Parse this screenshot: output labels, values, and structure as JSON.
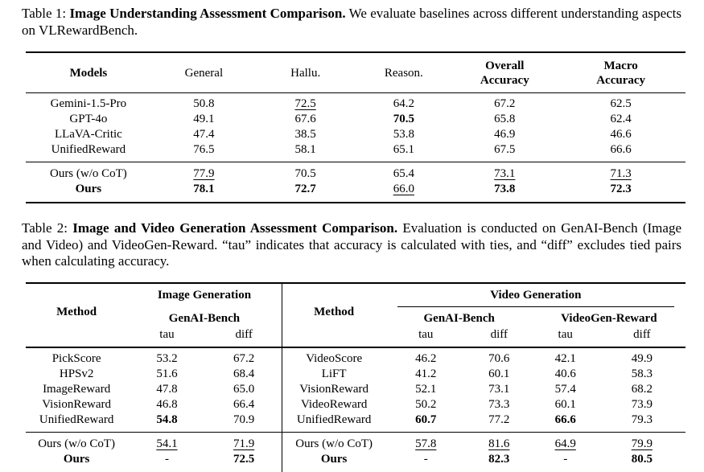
{
  "table1": {
    "caption": {
      "label": "Table 1: ",
      "title": "Image Understanding Assessment Comparison.",
      "rest": " We evaluate baselines across different understanding aspects on VLRewardBench."
    },
    "columns": [
      {
        "label": "Models",
        "bold": true
      },
      {
        "label": "General",
        "bold": false
      },
      {
        "label": "Hallu.",
        "bold": false
      },
      {
        "label": "Reason.",
        "bold": false
      },
      {
        "label": "Overall Accuracy",
        "bold": true,
        "narrow": true
      },
      {
        "label": "Macro Accuracy",
        "bold": true,
        "narrow": true
      }
    ],
    "rows": [
      [
        "Gemini-1.5-Pro",
        "50.8",
        {
          "t": "72.5",
          "s": "u"
        },
        "64.2",
        "67.2",
        "62.5"
      ],
      [
        "GPT-4o",
        "49.1",
        "67.6",
        {
          "t": "70.5",
          "s": "b"
        },
        "65.8",
        "62.4"
      ],
      [
        "LLaVA-Critic",
        "47.4",
        "38.5",
        "53.8",
        "46.9",
        "46.6"
      ],
      [
        "UnifiedReward",
        "76.5",
        "58.1",
        "65.1",
        "67.5",
        "66.6"
      ]
    ],
    "ours_rows": [
      [
        "Ours (w/o CoT)",
        {
          "t": "77.9",
          "s": "u"
        },
        "70.5",
        "65.4",
        {
          "t": "73.1",
          "s": "u"
        },
        {
          "t": "71.3",
          "s": "u"
        }
      ],
      [
        {
          "t": "Ours",
          "s": "b"
        },
        {
          "t": "78.1",
          "s": "b"
        },
        {
          "t": "72.7",
          "s": "b"
        },
        {
          "t": "66.0",
          "s": "u"
        },
        {
          "t": "73.8",
          "s": "b"
        },
        {
          "t": "72.3",
          "s": "b"
        }
      ]
    ]
  },
  "table2": {
    "caption": {
      "label": "Table 2: ",
      "title": "Image and Video Generation Assessment Comparison.",
      "rest": " Evaluation is conducted on GenAI-Bench (Image and Video) and VideoGen-Reward. “tau” indicates that accuracy is calculated with ties, and “diff” excludes tied pairs when calculating accuracy."
    },
    "header": {
      "method_left": "Method",
      "method_right": "Method",
      "group_image": "Image Generation",
      "group_video": "Video Generation",
      "bench_image": "GenAI-Bench",
      "bench_video_1": "GenAI-Bench",
      "bench_video_2": "VideoGen-Reward",
      "tau": "tau",
      "diff": "diff"
    },
    "rows": [
      [
        "PickScore",
        "53.2",
        "67.2",
        "VideoScore",
        "46.2",
        "70.6",
        "42.1",
        "49.9"
      ],
      [
        "HPSv2",
        "51.6",
        "68.4",
        "LiFT",
        "41.2",
        "60.1",
        "40.6",
        "58.3"
      ],
      [
        "ImageReward",
        "47.8",
        "65.0",
        "VisionReward",
        "52.1",
        "73.1",
        "57.4",
        "68.2"
      ],
      [
        "VisionReward",
        "46.8",
        "66.4",
        "VideoReward",
        "50.2",
        "73.3",
        "60.1",
        "73.9"
      ],
      [
        "UnifiedReward",
        {
          "t": "54.8",
          "s": "b"
        },
        "70.9",
        "UnifiedReward",
        {
          "t": "60.7",
          "s": "b"
        },
        "77.2",
        {
          "t": "66.6",
          "s": "b"
        },
        "79.3"
      ]
    ],
    "ours_rows": [
      [
        "Ours (w/o CoT)",
        {
          "t": "54.1",
          "s": "u"
        },
        {
          "t": "71.9",
          "s": "u"
        },
        "Ours (w/o CoT)",
        {
          "t": "57.8",
          "s": "u"
        },
        {
          "t": "81.6",
          "s": "u"
        },
        {
          "t": "64.9",
          "s": "u"
        },
        {
          "t": "79.9",
          "s": "u"
        }
      ],
      [
        {
          "t": "Ours",
          "s": "b"
        },
        "-",
        {
          "t": "72.5",
          "s": "b"
        },
        {
          "t": "Ours",
          "s": "b"
        },
        "-",
        {
          "t": "82.3",
          "s": "b"
        },
        "-",
        {
          "t": "80.5",
          "s": "b"
        }
      ]
    ]
  }
}
